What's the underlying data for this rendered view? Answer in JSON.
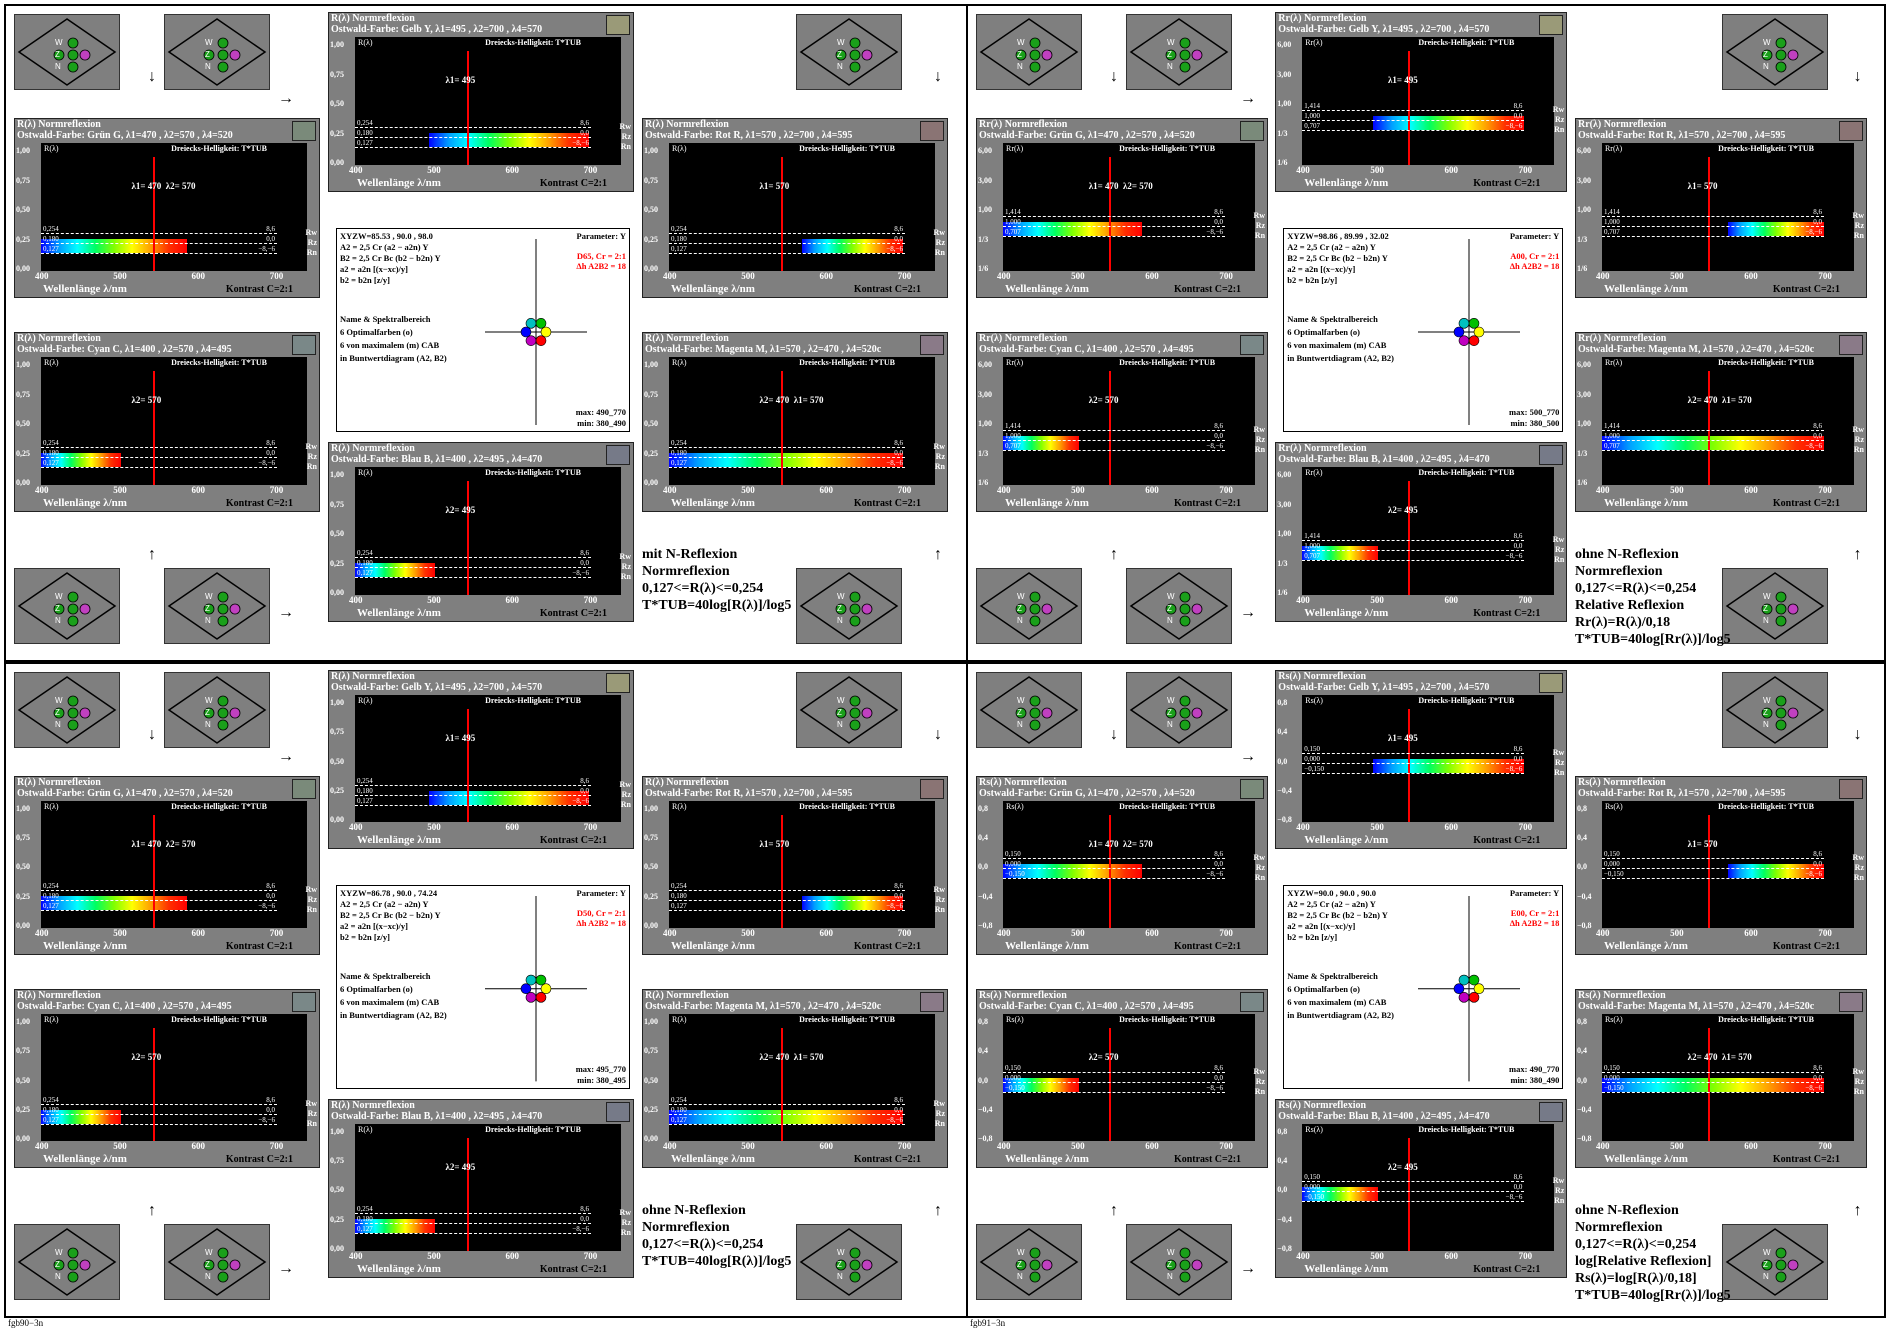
{
  "blocks": [
    {
      "footer": "fgb90−3n",
      "note": [
        "mit N-Reflexion",
        "Normreflexion",
        "0,127<=R(λ)<=0,254",
        "T*TUB=40log[R(λ)]/log5"
      ],
      "ylab": "R(λ)",
      "yticks": [
        "1,00",
        "0,75",
        "0,50",
        "0,25",
        "0,00"
      ],
      "marks": [
        "0,254",
        "0,180",
        "0,127"
      ],
      "info": {
        "xyz": "XYZW=85.53 , 90.0 , 98.0",
        "light": "D65, Cr = 2:1",
        "dh": "Δh A2B2 = 18",
        "max": "max: 490_770",
        "min": "min: 380_490"
      }
    },
    {
      "footer": "fgb91−3n",
      "note": [
        "ohne N-Reflexion",
        "Normreflexion",
        "0,127<=R(λ)<=0,254",
        "Relative Reflexion",
        "Rr(λ)=R(λ)/0,18",
        "T*TUB=40log[Rr(λ)]/log5"
      ],
      "ylab": "Rr(λ)",
      "yticks": [
        "6,00",
        "3,00",
        "1,00",
        "1/3",
        "1/6"
      ],
      "marks": [
        "1,414",
        "1,000",
        "0,707"
      ],
      "info": {
        "xyz": "XYZW=98.86 , 89.99 , 32.02",
        "light": "A00, Cr = 2:1",
        "dh": "Δh A2B2 = 18",
        "max": "max: 500_770",
        "min": "min: 380_500"
      }
    },
    {
      "footer": "fgb90−3n",
      "note": [
        "ohne N-Reflexion",
        "Normreflexion",
        "0,127<=R(λ)<=0,254",
        "T*TUB=40log[R(λ)]/log5"
      ],
      "ylab": "R(λ)",
      "yticks": [
        "1,00",
        "0,75",
        "0,50",
        "0,25",
        "0,00"
      ],
      "marks": [
        "0,254",
        "0,180",
        "0,127"
      ],
      "info": {
        "xyz": "XYZW=86.78 , 90.0 , 74.24",
        "light": "D50, Cr = 2:1",
        "dh": "Δh A2B2 = 18",
        "max": "max: 495_770",
        "min": "min: 380_495"
      }
    },
    {
      "footer": "fgb91−3n",
      "note": [
        "ohne N-Reflexion",
        "Normreflexion",
        "0,127<=R(λ)<=0,254",
        "log[Relative Reflexion]",
        "Rs(λ)=log[R(λ)/0,18]",
        "T*TUB=40log[Rr(λ)]/log5"
      ],
      "ylab": "Rs(λ)",
      "yticks": [
        "0,8",
        "0,4",
        "0,0",
        "−0,4",
        "−0,8"
      ],
      "marks": [
        "0,150",
        "0,000",
        "−0,150"
      ],
      "info": {
        "xyz": "XYZW=90.0 , 90.0 , 90.0",
        "light": "E00, Cr = 2:1",
        "dh": "Δh A2B2 = 18",
        "max": "max: 490_770",
        "min": "min: 380_490"
      }
    }
  ],
  "panels": [
    {
      "key": "Y",
      "title": "Normreflexion",
      "sub": "Ostwald-Farbe: Gelb Y, λ1=495 , λ2=700 , λ4=570",
      "lambda": "λ1= 495",
      "swatch": "#9a9a78"
    },
    {
      "key": "G",
      "title": "Normreflexion",
      "sub": "Ostwald-Farbe: Grün G, λ1=470 , λ2=570 , λ4=520",
      "lambda": "λ1= 470  λ2= 570",
      "swatch": "#7a8a7a"
    },
    {
      "key": "R",
      "title": "Normreflexion",
      "sub": "Ostwald-Farbe: Rot R, λ1=570 , λ2=700 , λ4=595",
      "lambda": "λ1= 570",
      "swatch": "#8a7474"
    },
    {
      "key": "C",
      "title": "Normreflexion",
      "sub": "Ostwald-Farbe: Cyan C, λ1=400 , λ2=570 , λ4=495",
      "lambda": "λ2= 570",
      "swatch": "#7a8888"
    },
    {
      "key": "M",
      "title": "Normreflexion",
      "sub": "Ostwald-Farbe: Magenta M, λ1=570 , λ2=470 , λ4=520c",
      "lambda": "λ2= 470  λ1= 570",
      "swatch": "#8a7a88"
    },
    {
      "key": "B",
      "title": "Normreflexion",
      "sub": "Ostwald-Farbe: Blau B, λ1=400 , λ2=495 , λ4=470",
      "lambda": "λ2= 495",
      "swatch": "#767a88"
    }
  ],
  "common": {
    "xlabel": "Wellenlänge λ/nm",
    "contrast": "Kontrast C=2:1",
    "dh": "Dreiecks-Helligkeit:",
    "tstar": "T*TUB",
    "xticks": [
      "400",
      "500",
      "600",
      "700"
    ],
    "rlabels": [
      "Rw",
      "Rz",
      "Rn"
    ],
    "rvals": [
      "8,6",
      "0,0",
      "−8,−6"
    ],
    "param": "Parameter: Y",
    "icon_labels": [
      "W",
      "Z",
      "N"
    ]
  },
  "colors": {
    "panel": "#7f7f7f",
    "plot": "#000000",
    "red": "#ff0000"
  }
}
